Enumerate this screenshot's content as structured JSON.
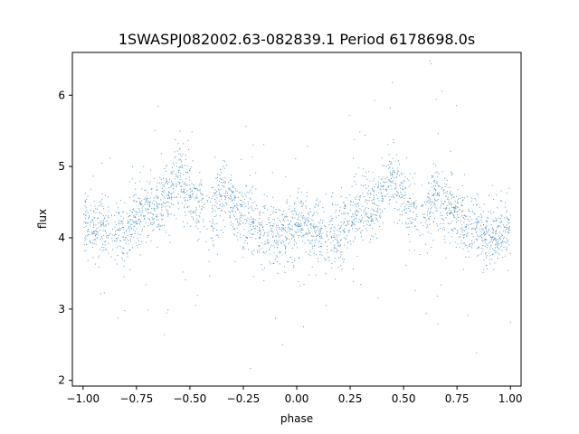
{
  "chart_data": {
    "type": "scatter",
    "title": "1SWASPJ082002.63-082839.1 Period 6178698.0s",
    "xlabel": "phase",
    "ylabel": "flux",
    "xlim": [
      -1.05,
      1.05
    ],
    "ylim": [
      1.92,
      6.6
    ],
    "xticks": [
      -1.0,
      -0.75,
      -0.5,
      -0.25,
      0.0,
      0.25,
      0.5,
      0.75,
      1.0
    ],
    "xtick_labels": [
      "−1.00",
      "−0.75",
      "−0.50",
      "−0.25",
      "0.00",
      "0.25",
      "0.50",
      "0.75",
      "1.00"
    ],
    "yticks": [
      2,
      3,
      4,
      5,
      6
    ],
    "ytick_labels": [
      "2",
      "3",
      "4",
      "5",
      "6"
    ],
    "grid": false,
    "marker_color": "#1f77b4",
    "profile": {
      "phase": [
        0.0,
        0.05,
        0.1,
        0.15,
        0.2,
        0.25,
        0.3,
        0.35,
        0.4,
        0.45,
        0.5,
        0.55,
        0.6,
        0.65,
        0.7,
        0.75,
        0.8,
        0.85,
        0.9,
        0.95,
        1.0
      ],
      "mean_flux": [
        4.2,
        4.15,
        4.1,
        4.05,
        4.05,
        4.3,
        4.45,
        4.45,
        4.6,
        4.9,
        4.6,
        4.4,
        4.3,
        4.65,
        4.45,
        4.3,
        4.2,
        4.05,
        4.0,
        4.05,
        4.2
      ]
    }
  }
}
